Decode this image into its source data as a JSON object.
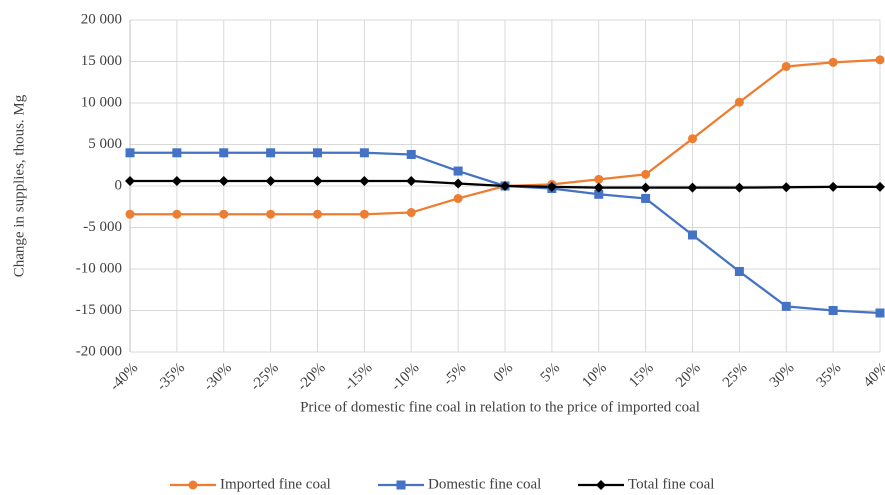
{
  "chart_data": {
    "type": "line",
    "x_label": "Price of domestic fine coal in relation to the price of imported coal",
    "y_label": "Change in supplies, thous. Mg",
    "categories": [
      "-40%",
      "-35%",
      "-30%",
      "-25%",
      "-20%",
      "-15%",
      "-10%",
      "-5%",
      "0%",
      "5%",
      "10%",
      "15%",
      "20%",
      "25%",
      "30%",
      "35%",
      "40%"
    ],
    "series": [
      {
        "name": "Imported fine coal",
        "color": "#ED7D31",
        "marker": "circle",
        "values": [
          -3400,
          -3400,
          -3400,
          -3400,
          -3400,
          -3400,
          -3200,
          -1500,
          0,
          200,
          800,
          1400,
          5700,
          10100,
          14400,
          14900,
          15200
        ]
      },
      {
        "name": "Domestic fine coal",
        "color": "#4472C4",
        "marker": "square",
        "values": [
          4000,
          4000,
          4000,
          4000,
          4000,
          4000,
          3800,
          1800,
          0,
          -300,
          -1000,
          -1500,
          -5900,
          -10300,
          -14500,
          -15000,
          -15300
        ]
      },
      {
        "name": "Total fine coal",
        "color": "#000000",
        "marker": "diamond",
        "values": [
          600,
          600,
          600,
          600,
          600,
          600,
          600,
          300,
          0,
          -100,
          -200,
          -200,
          -200,
          -200,
          -150,
          -100,
          -100
        ]
      }
    ],
    "ylim": [
      -20000,
      20000
    ],
    "yticks": [
      {
        "value": -20000,
        "label": "-20 000"
      },
      {
        "value": -15000,
        "label": "-15 000"
      },
      {
        "value": -10000,
        "label": "-10 000"
      },
      {
        "value": -5000,
        "label": "-5 000"
      },
      0,
      {
        "value": 5000,
        "label": "5 000"
      },
      {
        "value": 10000,
        "label": "10 000"
      },
      {
        "value": 15000,
        "label": "15 000"
      },
      {
        "value": 20000,
        "label": "20 000"
      }
    ],
    "grid": true,
    "legend": "bottom"
  }
}
